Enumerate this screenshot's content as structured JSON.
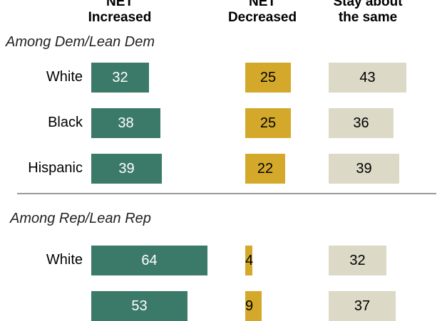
{
  "chart_data": {
    "type": "bar",
    "columns": [
      {
        "line1": "NET",
        "line2": "Increased"
      },
      {
        "line1": "NET",
        "line2": "Decreased"
      },
      {
        "line1": "Stay about",
        "line2": "the same"
      }
    ],
    "series": [
      {
        "name": "NET Increased",
        "color": "#3b7a68"
      },
      {
        "name": "NET Decreased",
        "color": "#d4a92b"
      },
      {
        "name": "Stay about the same",
        "color": "#dcd9c7"
      }
    ],
    "groups": [
      {
        "title": "Among Dem/Lean Dem",
        "rows": [
          {
            "label": "White",
            "values": [
              32,
              25,
              43
            ]
          },
          {
            "label": "Black",
            "values": [
              38,
              25,
              36
            ]
          },
          {
            "label": "Hispanic",
            "values": [
              39,
              22,
              39
            ]
          }
        ]
      },
      {
        "title": "Among Rep/Lean Rep",
        "rows": [
          {
            "label": "White",
            "values": [
              64,
              4,
              32
            ]
          },
          {
            "label": "",
            "values": [
              53,
              9,
              37
            ]
          }
        ]
      }
    ]
  }
}
